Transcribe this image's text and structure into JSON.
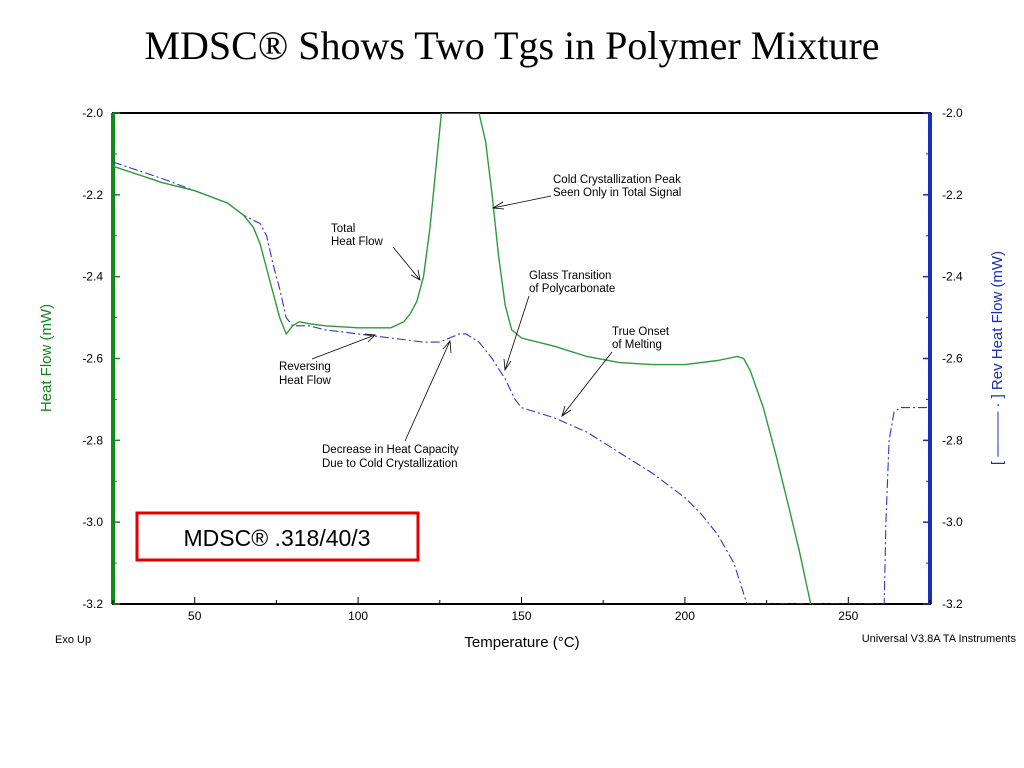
{
  "slide": {
    "title": "MDSC® Shows Two Tgs in Polymer Mixture",
    "footer_left": "Exo Up",
    "footer_right": "Universal V3.8A TA Instruments",
    "method_box": "MDSC® .318/40/3"
  },
  "colors": {
    "total": "#2e9a3a",
    "reversing": "#3333cc",
    "left_axis": "#108a1c",
    "right_axis": "#1a2fb5",
    "box_border": "#e00000"
  },
  "chart_data": {
    "type": "line",
    "xlabel": "Temperature (°C)",
    "ylabel": "Heat Flow (mW)",
    "y2label": "[ ——— · ] Rev Heat Flow (mW)",
    "xlim": [
      25,
      275
    ],
    "ylim": [
      -3.2,
      -2.0
    ],
    "y2lim": [
      -3.2,
      -2.0
    ],
    "x_ticks": [
      50,
      100,
      150,
      200,
      250
    ],
    "y_ticks": [
      -2.0,
      -2.2,
      -2.4,
      -2.6,
      -2.8,
      -3.0,
      -3.2
    ],
    "y_tick_labels": [
      "-2.0",
      "-2.2",
      "-2.4",
      "-2.6",
      "-2.8",
      "-3.0",
      "-3.2"
    ],
    "grid": false,
    "series": [
      {
        "name": "Total Heat Flow",
        "x": [
          25,
          40,
          50,
          60,
          65,
          68,
          70,
          72,
          74,
          76,
          78,
          80,
          82,
          85,
          90,
          100,
          110,
          114,
          116,
          118,
          120,
          122,
          124,
          125.5,
          127,
          133,
          135,
          137,
          139,
          141,
          143,
          145,
          147,
          150,
          160,
          170,
          180,
          190,
          200,
          205,
          210,
          213,
          216,
          218,
          220,
          224,
          228,
          232,
          235,
          238.5
        ],
        "y": [
          -2.13,
          -2.17,
          -2.19,
          -2.22,
          -2.25,
          -2.28,
          -2.32,
          -2.38,
          -2.44,
          -2.5,
          -2.54,
          -2.52,
          -2.51,
          -2.515,
          -2.52,
          -2.525,
          -2.525,
          -2.51,
          -2.49,
          -2.46,
          -2.4,
          -2.28,
          -2.12,
          -2.0,
          -2.0,
          -2.0,
          -2.0,
          -2.0,
          -2.07,
          -2.2,
          -2.35,
          -2.47,
          -2.53,
          -2.55,
          -2.57,
          -2.595,
          -2.61,
          -2.615,
          -2.615,
          -2.61,
          -2.605,
          -2.6,
          -2.595,
          -2.6,
          -2.63,
          -2.72,
          -2.84,
          -2.97,
          -3.07,
          -3.2
        ]
      },
      {
        "name": "Reversing Heat Flow",
        "x": [
          25,
          40,
          50,
          60,
          65,
          70,
          72,
          74,
          76,
          78,
          80,
          85,
          90,
          100,
          110,
          120,
          125,
          128,
          131,
          133,
          137,
          141,
          145,
          148,
          150,
          160,
          170,
          180,
          190,
          200,
          205,
          210,
          215,
          219,
          261,
          261.5,
          262.5,
          264,
          266,
          268,
          270,
          275
        ],
        "y": [
          -2.12,
          -2.16,
          -2.19,
          -2.22,
          -2.25,
          -2.27,
          -2.3,
          -2.37,
          -2.43,
          -2.5,
          -2.52,
          -2.52,
          -2.53,
          -2.54,
          -2.55,
          -2.56,
          -2.56,
          -2.55,
          -2.54,
          -2.54,
          -2.56,
          -2.6,
          -2.65,
          -2.7,
          -2.72,
          -2.745,
          -2.78,
          -2.83,
          -2.88,
          -2.94,
          -2.98,
          -3.03,
          -3.1,
          -3.2,
          -3.2,
          -3.0,
          -2.8,
          -2.73,
          -2.72,
          -2.72,
          -2.72,
          -2.72
        ]
      }
    ],
    "annotations": [
      {
        "lines": [
          "Cold Crystallization Peak",
          "Seen Only in Total Signal"
        ]
      },
      {
        "lines": [
          "Total",
          "Heat Flow"
        ]
      },
      {
        "lines": [
          "Glass Transition",
          "of Polycarbonate"
        ]
      },
      {
        "lines": [
          "True Onset",
          "of Melting"
        ]
      },
      {
        "lines": [
          "Reversing",
          "Heat Flow"
        ]
      },
      {
        "lines": [
          "Decrease in Heat Capacity",
          "Due to Cold Crystallization"
        ]
      }
    ]
  }
}
